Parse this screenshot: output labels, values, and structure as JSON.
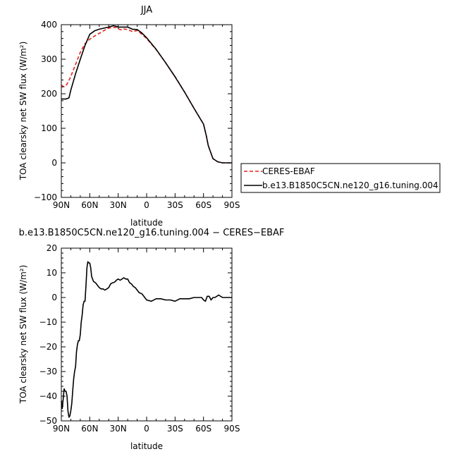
{
  "chart_data": [
    {
      "type": "line",
      "title": "JJA",
      "xlabel": "latitude",
      "ylabel": "TOA clearsky net SW flux (W/m²)",
      "xlim": [
        90,
        -90
      ],
      "ylim": [
        -100,
        400
      ],
      "x_tick_labels": [
        "90N",
        "60N",
        "30N",
        "0",
        "30S",
        "60S",
        "90S"
      ],
      "y_tick_labels": [
        "−100",
        "0",
        "100",
        "200",
        "300",
        "400"
      ],
      "legend_position": "right",
      "series": [
        {
          "name": "CERES-EBAF",
          "color": "#e8221f",
          "style": "dashed",
          "x": [
            90,
            87,
            84,
            80,
            75,
            70,
            65,
            60,
            55,
            50,
            45,
            40,
            35,
            32,
            30,
            27,
            25,
            20,
            15,
            10,
            5,
            0,
            -10,
            -20,
            -30,
            -40,
            -50,
            -60,
            -63,
            -65,
            -70,
            -75,
            -80,
            -90
          ],
          "y": [
            225,
            220,
            228,
            250,
            285,
            320,
            345,
            358,
            367,
            375,
            383,
            390,
            392,
            392,
            388,
            385,
            388,
            386,
            380,
            383,
            372,
            360,
            328,
            290,
            250,
            205,
            158,
            112,
            78,
            50,
            12,
            3,
            0,
            0
          ]
        },
        {
          "name": "b.e13.B1850C5CN.ne120_g16.tuning.004",
          "color": "#000000",
          "style": "solid",
          "x": [
            90,
            85,
            82,
            80,
            75,
            70,
            65,
            60,
            55,
            50,
            45,
            40,
            35,
            32,
            30,
            25,
            20,
            15,
            10,
            5,
            0,
            -10,
            -20,
            -30,
            -40,
            -50,
            -60,
            -63,
            -65,
            -70,
            -75,
            -80,
            -90
          ],
          "y": [
            185,
            185,
            188,
            210,
            258,
            300,
            340,
            372,
            382,
            387,
            390,
            393,
            397,
            395,
            393,
            393,
            393,
            387,
            386,
            376,
            362,
            329,
            290,
            249,
            205,
            158,
            112,
            78,
            50,
            12,
            3,
            0,
            0
          ]
        }
      ]
    },
    {
      "type": "line",
      "title": "b.e13.B1850C5CN.ne120_g16.tuning.004 − CERES−EBAF",
      "xlabel": "latitude",
      "ylabel": "TOA clearsky net SW flux (W/m²)",
      "xlim": [
        90,
        -90
      ],
      "ylim": [
        -50,
        20
      ],
      "x_tick_labels": [
        "90N",
        "60N",
        "30N",
        "0",
        "30S",
        "60S",
        "90S"
      ],
      "y_tick_labels": [
        "−50",
        "−40",
        "−30",
        "−20",
        "−10",
        "0",
        "10",
        "20"
      ],
      "series": [
        {
          "color": "#000000",
          "style": "solid",
          "x": [
            90,
            89,
            88,
            87,
            86,
            85,
            84,
            83,
            82,
            81,
            80,
            79,
            78,
            77,
            76,
            75,
            74,
            73,
            72,
            71,
            70,
            69,
            68,
            67,
            66,
            65,
            64,
            63,
            62,
            61,
            60,
            59,
            58,
            56,
            54,
            52,
            50,
            48,
            46,
            44,
            42,
            40,
            38,
            36,
            35,
            33,
            32,
            30,
            28,
            26,
            24,
            22,
            20,
            18,
            16,
            15,
            14,
            12,
            10,
            8,
            5,
            3,
            1,
            0,
            -5,
            -10,
            -15,
            -20,
            -25,
            -30,
            -35,
            -40,
            -45,
            -50,
            -55,
            -58,
            -60,
            -62,
            -64,
            -66,
            -68,
            -70,
            -72,
            -74,
            -76,
            -78,
            -80,
            -85,
            -90
          ],
          "y": [
            -42,
            -45,
            -41,
            -37,
            -38,
            -38,
            -40,
            -46,
            -48.5,
            -48,
            -46,
            -43,
            -38,
            -33,
            -30,
            -28,
            -22,
            -19,
            -17.5,
            -17.5,
            -15,
            -10,
            -7,
            -3,
            -1.5,
            -1.5,
            5,
            12,
            14.5,
            14,
            14,
            12,
            8.5,
            6.5,
            6,
            5,
            4,
            3.5,
            3.5,
            3,
            3.5,
            4,
            5.5,
            6,
            6,
            6.5,
            7,
            7.5,
            7,
            7.5,
            8,
            7.5,
            7.5,
            6,
            5.5,
            5,
            4.5,
            4,
            3,
            2,
            1.5,
            0.5,
            -0.5,
            -1,
            -1.5,
            -0.5,
            -0.5,
            -1,
            -1,
            -1.5,
            -0.5,
            -0.5,
            -0.5,
            0,
            0,
            0,
            -1,
            -1.5,
            0.5,
            0.5,
            -1,
            0,
            0,
            0.5,
            1,
            0.5,
            0,
            0,
            0
          ]
        }
      ]
    }
  ]
}
